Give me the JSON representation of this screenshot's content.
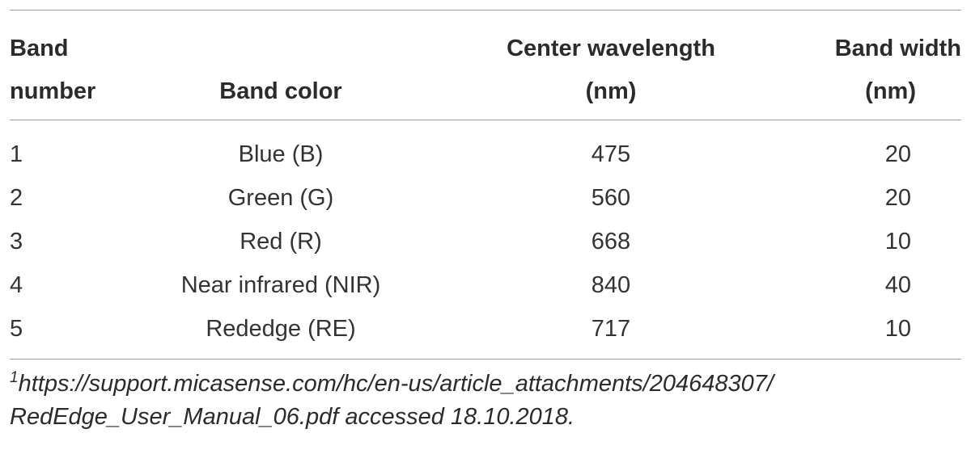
{
  "table": {
    "headers": {
      "band_number": [
        "Band",
        "number"
      ],
      "band_color": "Band color",
      "center_wavelength": [
        "Center wavelength",
        "(nm)"
      ],
      "band_width": [
        "Band width",
        "(nm)"
      ]
    },
    "rows": [
      {
        "band_number": "1",
        "band_color": "Blue (B)",
        "center_wavelength": "475",
        "band_width": "20"
      },
      {
        "band_number": "2",
        "band_color": "Green (G)",
        "center_wavelength": "560",
        "band_width": "20"
      },
      {
        "band_number": "3",
        "band_color": "Red (R)",
        "center_wavelength": "668",
        "band_width": "10"
      },
      {
        "band_number": "4",
        "band_color": "Near infrared (NIR)",
        "center_wavelength": "840",
        "band_width": "40"
      },
      {
        "band_number": "5",
        "band_color": "Rededge (RE)",
        "center_wavelength": "717",
        "band_width": "10"
      }
    ]
  },
  "footnote": {
    "marker": "1",
    "line1": "https://support.micasense.com/hc/en-us/article_attachments/204648307/",
    "line2": "RedEdge_User_Manual_06.pdf accessed 18.10.2018."
  }
}
